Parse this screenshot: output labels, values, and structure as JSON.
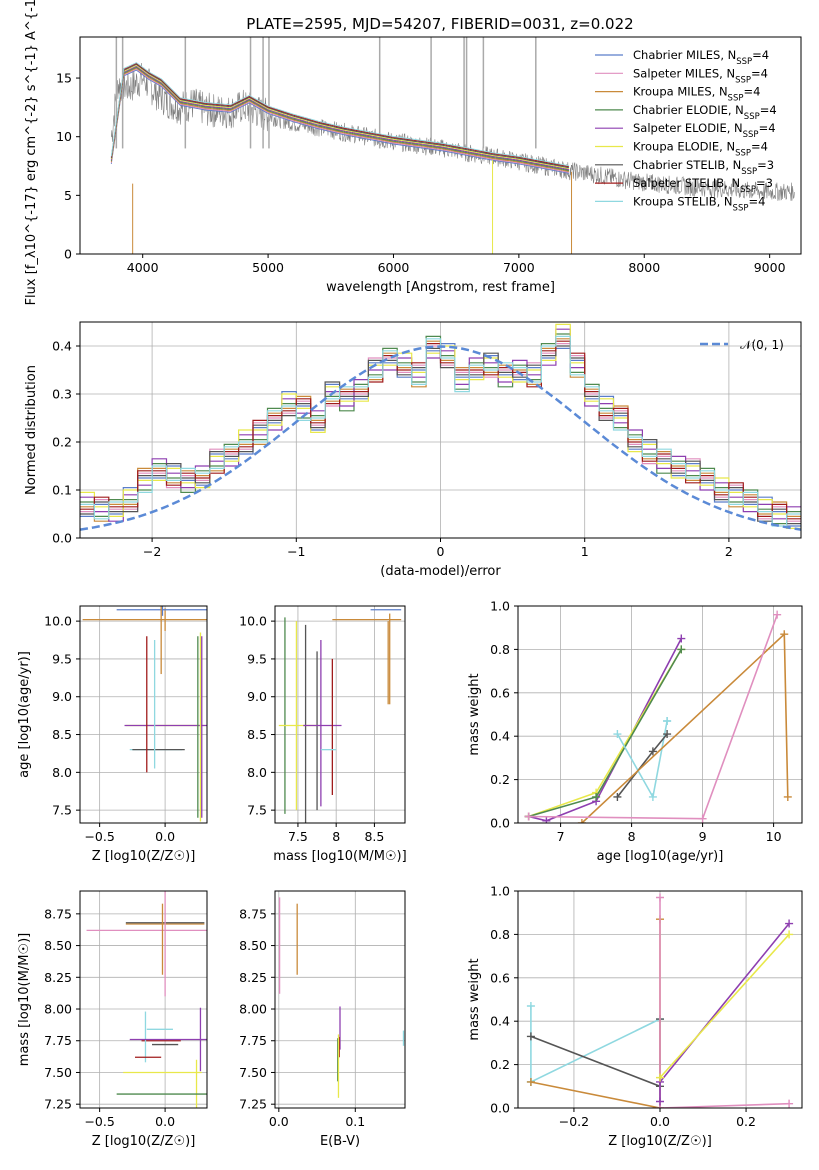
{
  "figure_title": "PLATE=2595, MJD=54207, FIBERID=0031, z=0.022",
  "series": [
    {
      "name": "Chabrier MILES, N$_{SSP}$=4",
      "color": "#5b7ec9"
    },
    {
      "name": "Salpeter MILES, N$_{SSP}$=4",
      "color": "#e08fbf"
    },
    {
      "name": "Kroupa MILES, N$_{SSP}$=4",
      "color": "#c98a3a"
    },
    {
      "name": "Chabrier ELODIE, N$_{SSP}$=4",
      "color": "#4f8a4f"
    },
    {
      "name": "Salpeter ELODIE, N$_{SSP}$=4",
      "color": "#8e3fb0"
    },
    {
      "name": "Kroupa ELODIE, N$_{SSP}$=4",
      "color": "#e8e84a"
    },
    {
      "name": "Chabrier STELIB, N$_{SSP}$=3",
      "color": "#555555"
    },
    {
      "name": "Salpeter STELIB, N$_{SSP}$=3",
      "color": "#a01c1c"
    },
    {
      "name": "Kroupa STELIB, N$_{SSP}$=4",
      "color": "#8fd8e0"
    }
  ],
  "chart_data": [
    {
      "id": "spectrum",
      "type": "line",
      "xlabel": "wavelength [Angstrom, rest frame]",
      "ylabel": "Flux [f_λ10^{-17} erg cm^{-2} s^{-1} A^{-1}]",
      "xlim": [
        3500,
        9250
      ],
      "ylim": [
        0,
        18.5
      ],
      "xticks": [
        4000,
        5000,
        6000,
        7000,
        8000,
        9000
      ],
      "yticks": [
        0,
        5,
        10,
        15
      ],
      "grid": false,
      "legend": "upper-right",
      "data_observed": {
        "color": "#808080",
        "x": [
          3750,
          3800,
          3900,
          4000,
          4100,
          4200,
          4300,
          4400,
          4500,
          4600,
          4700,
          4800,
          4900,
          5000,
          5200,
          5400,
          5600,
          5800,
          6000,
          6200,
          6400,
          6600,
          6800,
          7000,
          7200,
          7400,
          7600,
          7800,
          8000,
          8200,
          8400,
          8600,
          8800,
          9000,
          9200
        ],
        "y": [
          10,
          14.5,
          14.2,
          15.0,
          13.8,
          13.0,
          12.5,
          12.8,
          12.3,
          12.2,
          12.1,
          12.6,
          12.2,
          11.8,
          11.2,
          10.8,
          10.4,
          10.0,
          9.6,
          9.3,
          9.0,
          8.6,
          8.3,
          7.9,
          7.5,
          7.1,
          6.8,
          6.4,
          6.1,
          5.9,
          5.7,
          5.6,
          5.4,
          5.3,
          5.3
        ]
      },
      "model_spectrum": {
        "x": [
          3750,
          3850,
          3950,
          4050,
          4150,
          4300,
          4500,
          4700,
          4850,
          5000,
          5200,
          5400,
          5600,
          5800,
          6000,
          6200,
          6400,
          6600,
          6800,
          7000,
          7200,
          7400
        ],
        "y": [
          8,
          15.5,
          16.0,
          15.2,
          14.6,
          13.0,
          12.6,
          12.4,
          13.2,
          12.3,
          11.6,
          11.0,
          10.5,
          10.1,
          9.7,
          9.4,
          9.1,
          8.7,
          8.3,
          8.0,
          7.6,
          7.2
        ]
      }
    },
    {
      "id": "residual_histogram",
      "type": "line",
      "xlabel": "(data-model)/error",
      "ylabel": "Normed distribution",
      "xlim": [
        -2.5,
        2.5
      ],
      "ylim": [
        0,
        0.45
      ],
      "xticks": [
        -2,
        -1,
        0,
        1,
        2
      ],
      "yticks": [
        0.0,
        0.1,
        0.2,
        0.3,
        0.4
      ],
      "grid": true,
      "legend": "upper-right",
      "gaussian_label": "𝒩(0, 1)",
      "gaussian_color": "#5b8ad6",
      "gaussian": {
        "mean": 0,
        "sigma": 1
      },
      "histogram": {
        "bin_start": -2.5,
        "bin_width": 0.1,
        "counts": [
          0.07,
          0.06,
          0.06,
          0.08,
          0.12,
          0.14,
          0.13,
          0.12,
          0.13,
          0.16,
          0.17,
          0.2,
          0.22,
          0.25,
          0.28,
          0.27,
          0.24,
          0.3,
          0.29,
          0.31,
          0.35,
          0.37,
          0.36,
          0.34,
          0.4,
          0.38,
          0.33,
          0.35,
          0.36,
          0.34,
          0.35,
          0.34,
          0.38,
          0.42,
          0.36,
          0.3,
          0.27,
          0.25,
          0.2,
          0.18,
          0.16,
          0.15,
          0.14,
          0.12,
          0.1,
          0.09,
          0.08,
          0.06,
          0.05,
          0.04
        ]
      }
    },
    {
      "id": "age_vs_Z",
      "type": "scatter",
      "xlabel": "Z [log10(Z/Z☉)]",
      "ylabel": "age  [log10(age/yr)]",
      "xlim": [
        -0.65,
        0.32
      ],
      "ylim": [
        7.33,
        10.2
      ],
      "xticks": [
        -0.5,
        0.0
      ],
      "yticks": [
        7.5,
        8.0,
        8.5,
        9.0,
        9.5,
        10.0
      ],
      "grid": true,
      "errorbars": [
        {
          "s": 2,
          "x": -0.05,
          "y": 10.02,
          "xerr": 0.58,
          "yerr": 0
        },
        {
          "s": 2,
          "x": 0.0,
          "y": 10.02,
          "xerr": 0,
          "yerr": 0.15
        },
        {
          "s": 0,
          "x": -0.02,
          "y": 10.15,
          "xerr": 0.35,
          "yerr": 0.08
        },
        {
          "s": 2,
          "x": -0.03,
          "y": 10.1,
          "xerr": 0,
          "yerr": 0.8
        },
        {
          "s": 5,
          "x": 0.0,
          "y": 8.62,
          "xerr": 0.3,
          "yerr": 0
        },
        {
          "s": 4,
          "x": 0.02,
          "y": 8.62,
          "xerr": 0.33,
          "yerr": 0
        },
        {
          "s": 8,
          "x": -0.07,
          "y": 8.3,
          "xerr": 0.2,
          "yerr": 0
        },
        {
          "s": 6,
          "x": -0.05,
          "y": 8.3,
          "xerr": 0.2,
          "yerr": 0
        },
        {
          "s": 7,
          "x": -0.14,
          "y": 8.9,
          "xerr": 0,
          "yerr": 0.9
        },
        {
          "s": 8,
          "x": -0.08,
          "y": 8.9,
          "xerr": 0,
          "yerr": 0.85
        },
        {
          "s": 3,
          "x": 0.25,
          "y": 8.6,
          "xerr": 0,
          "yerr": 1.2
        },
        {
          "s": 5,
          "x": 0.27,
          "y": 8.6,
          "xerr": 0,
          "yerr": 1.25
        },
        {
          "s": 4,
          "x": 0.28,
          "y": 8.6,
          "xerr": 0,
          "yerr": 1.2
        }
      ]
    },
    {
      "id": "age_vs_mass",
      "type": "scatter",
      "xlabel": "mass [log10(M/M☉)]",
      "ylabel": "",
      "xlim": [
        7.2,
        8.9
      ],
      "ylim": [
        7.33,
        10.2
      ],
      "xticks": [
        7.5,
        8.0,
        8.5
      ],
      "yticks": [
        7.5,
        8.0,
        8.5,
        9.0,
        9.5,
        10.0
      ],
      "grid": true,
      "errorbars": [
        {
          "s": 2,
          "x": 8.4,
          "y": 10.02,
          "xerr": 0.45,
          "yerr": 0
        },
        {
          "s": 0,
          "x": 8.65,
          "y": 10.15,
          "xerr": 0.2,
          "yerr": 0
        },
        {
          "s": 2,
          "x": 8.68,
          "y": 9.45,
          "xerr": 0,
          "yerr": 0.55
        },
        {
          "s": 2,
          "x": 8.7,
          "y": 9.5,
          "xerr": 0,
          "yerr": 0.6
        },
        {
          "s": 3,
          "x": 7.33,
          "y": 8.75,
          "xerr": 0,
          "yerr": 1.3
        },
        {
          "s": 5,
          "x": 7.5,
          "y": 8.62,
          "xerr": 0.25,
          "yerr": 0
        },
        {
          "s": 5,
          "x": 7.48,
          "y": 8.75,
          "xerr": 0,
          "yerr": 1.25
        },
        {
          "s": 6,
          "x": 7.6,
          "y": 8.6,
          "xerr": 0,
          "yerr": 1.35
        },
        {
          "s": 6,
          "x": 7.75,
          "y": 8.55,
          "xerr": 0,
          "yerr": 1.05
        },
        {
          "s": 4,
          "x": 7.82,
          "y": 8.62,
          "xerr": 0.25,
          "yerr": 0
        },
        {
          "s": 4,
          "x": 7.8,
          "y": 8.65,
          "xerr": 0,
          "yerr": 1.1
        },
        {
          "s": 7,
          "x": 7.95,
          "y": 8.6,
          "xerr": 0,
          "yerr": 0.9
        },
        {
          "s": 8,
          "x": 7.9,
          "y": 8.3,
          "xerr": 0.1,
          "yerr": 0
        }
      ]
    },
    {
      "id": "mass_weight_vs_age",
      "type": "line",
      "xlabel": "age  [log10(age/yr)]",
      "ylabel": "mass weight",
      "xlim": [
        6.4,
        10.4
      ],
      "ylim": [
        0,
        1
      ],
      "xticks": [
        7,
        8,
        9,
        10
      ],
      "yticks": [
        0.0,
        0.2,
        0.4,
        0.6,
        0.8,
        1.0
      ],
      "grid": true,
      "lines": [
        {
          "s": 4,
          "x": [
            6.55,
            6.8,
            7.5,
            8.7
          ],
          "y": [
            0.03,
            0.01,
            0.1,
            0.85
          ]
        },
        {
          "s": 5,
          "x": [
            6.55,
            7.5,
            8.7
          ],
          "y": [
            0.03,
            0.14,
            0.8
          ]
        },
        {
          "s": 3,
          "x": [
            6.55,
            7.5,
            8.7
          ],
          "y": [
            0.03,
            0.12,
            0.8
          ]
        },
        {
          "s": 8,
          "x": [
            7.8,
            8.3,
            8.5,
            8.5
          ],
          "y": [
            0.41,
            0.12,
            0.47,
            0.47
          ]
        },
        {
          "s": 6,
          "x": [
            7.8,
            8.3,
            8.5
          ],
          "y": [
            0.12,
            0.33,
            0.41
          ]
        },
        {
          "s": 2,
          "x": [
            7.3,
            10.15,
            10.2
          ],
          "y": [
            0.0,
            0.87,
            0.12
          ]
        },
        {
          "s": 1,
          "x": [
            6.55,
            9.0,
            10.05
          ],
          "y": [
            0.03,
            0.02,
            0.96
          ]
        }
      ]
    },
    {
      "id": "mass_vs_Z",
      "type": "scatter",
      "xlabel": "Z [log10(Z/Z☉)]",
      "ylabel": "mass [log10(M/M☉)]",
      "xlim": [
        -0.65,
        0.32
      ],
      "ylim": [
        7.22,
        8.93
      ],
      "xticks": [
        -0.5,
        0.0
      ],
      "yticks": [
        7.25,
        7.5,
        7.75,
        8.0,
        8.25,
        8.5,
        8.75
      ],
      "grid": true,
      "errorbars": [
        {
          "s": 1,
          "x": -0.1,
          "y": 8.62,
          "xerr": 0.5,
          "yerr": 0
        },
        {
          "s": 2,
          "x": 0.0,
          "y": 8.67,
          "xerr": 0.3,
          "yerr": 0
        },
        {
          "s": 6,
          "x": 0.0,
          "y": 8.68,
          "xerr": 0.3,
          "yerr": 0
        },
        {
          "s": 2,
          "x": -0.02,
          "y": 8.55,
          "xerr": 0,
          "yerr": 0.28
        },
        {
          "s": 1,
          "x": 0.0,
          "y": 8.55,
          "xerr": 0,
          "yerr": 0.45
        },
        {
          "s": 7,
          "x": -0.03,
          "y": 7.75,
          "xerr": 0.15,
          "yerr": 0
        },
        {
          "s": 8,
          "x": -0.04,
          "y": 7.84,
          "xerr": 0.1,
          "yerr": 0
        },
        {
          "s": 8,
          "x": -0.15,
          "y": 7.78,
          "xerr": 0,
          "yerr": 0.2
        },
        {
          "s": 6,
          "x": 0.0,
          "y": 7.72,
          "xerr": 0.1,
          "yerr": 0
        },
        {
          "s": 4,
          "x": 0.03,
          "y": 7.76,
          "xerr": 0.3,
          "yerr": 0
        },
        {
          "s": 4,
          "x": 0.27,
          "y": 7.76,
          "xerr": 0,
          "yerr": 0.25
        },
        {
          "s": 7,
          "x": -0.13,
          "y": 7.62,
          "xerr": 0.1,
          "yerr": 0
        },
        {
          "s": 5,
          "x": -0.02,
          "y": 7.5,
          "xerr": 0.3,
          "yerr": 0
        },
        {
          "s": 5,
          "x": 0.24,
          "y": 7.4,
          "xerr": 0,
          "yerr": 0.2
        },
        {
          "s": 3,
          "x": -0.02,
          "y": 7.33,
          "xerr": 0.35,
          "yerr": 0
        }
      ]
    },
    {
      "id": "mass_vs_EBV",
      "type": "scatter",
      "xlabel": "E(B-V)",
      "ylabel": "",
      "xlim": [
        -0.005,
        0.165
      ],
      "ylim": [
        7.22,
        8.93
      ],
      "xticks": [
        0.0,
        0.1
      ],
      "yticks": [
        7.25,
        7.5,
        7.75,
        8.0,
        8.25,
        8.5,
        8.75
      ],
      "grid": true,
      "errorbars": [
        {
          "s": 1,
          "x": 0.001,
          "y": 8.5,
          "xerr": 0,
          "yerr": 0.38
        },
        {
          "s": 2,
          "x": 0.024,
          "y": 8.55,
          "xerr": 0,
          "yerr": 0.28
        },
        {
          "s": 4,
          "x": 0.08,
          "y": 7.85,
          "xerr": 0,
          "yerr": 0.17
        },
        {
          "s": 7,
          "x": 0.079,
          "y": 7.7,
          "xerr": 0,
          "yerr": 0.08
        },
        {
          "s": 3,
          "x": 0.077,
          "y": 7.6,
          "xerr": 0,
          "yerr": 0.17
        },
        {
          "s": 5,
          "x": 0.078,
          "y": 7.55,
          "xerr": 0,
          "yerr": 0.25
        },
        {
          "s": 8,
          "x": 0.163,
          "y": 7.77,
          "xerr": 0,
          "yerr": 0.06
        }
      ]
    },
    {
      "id": "mass_weight_vs_Z",
      "type": "line",
      "xlabel": "Z [log10(Z/Z☉)]",
      "ylabel": "mass weight",
      "xlim": [
        -0.33,
        0.33
      ],
      "ylim": [
        0,
        1
      ],
      "xticks": [
        -0.2,
        0.0,
        0.2
      ],
      "yticks": [
        0.0,
        0.2,
        0.4,
        0.6,
        0.8,
        1.0
      ],
      "grid": true,
      "lines": [
        {
          "s": 8,
          "x": [
            -0.3,
            -0.3,
            -0.3,
            0.0,
            0.0
          ],
          "y": [
            0.47,
            0.12,
            0.12,
            0.41,
            0.41
          ]
        },
        {
          "s": 6,
          "x": [
            -0.3,
            0.0,
            0.0
          ],
          "y": [
            0.33,
            0.1,
            0.41
          ]
        },
        {
          "s": 2,
          "x": [
            -0.3,
            0.0,
            0.0,
            0.0
          ],
          "y": [
            0.12,
            0.0,
            0.87,
            0.0
          ]
        },
        {
          "s": 1,
          "x": [
            0.0,
            0.0,
            0.3
          ],
          "y": [
            0.97,
            0.0,
            0.02
          ]
        },
        {
          "s": 4,
          "x": [
            0.0,
            0.0,
            0.3
          ],
          "y": [
            0.03,
            0.12,
            0.85
          ]
        },
        {
          "s": 5,
          "x": [
            0.0,
            0.3
          ],
          "y": [
            0.14,
            0.8
          ]
        }
      ]
    }
  ]
}
